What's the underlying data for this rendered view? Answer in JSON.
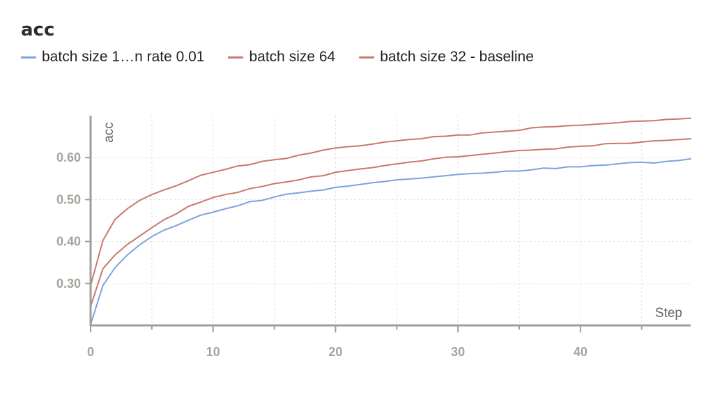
{
  "chart_data": {
    "type": "line",
    "title": "acc",
    "xlabel": "Step",
    "ylabel": "acc",
    "xlim": [
      0,
      49
    ],
    "ylim": [
      0.2,
      0.7
    ],
    "x_ticks": [
      0,
      10,
      20,
      30,
      40
    ],
    "x_tick_labels": [
      "0",
      "10",
      "20",
      "30",
      "40"
    ],
    "y_ticks": [
      0.3,
      0.4,
      0.5,
      0.6
    ],
    "y_tick_labels": [
      "0.30",
      "0.40",
      "0.50",
      "0.60"
    ],
    "grid": true,
    "legend_position": "top-left",
    "x": [
      0,
      1,
      2,
      3,
      4,
      5,
      6,
      7,
      8,
      9,
      10,
      11,
      12,
      13,
      14,
      15,
      16,
      17,
      18,
      19,
      20,
      21,
      22,
      23,
      24,
      25,
      26,
      27,
      28,
      29,
      30,
      31,
      32,
      33,
      34,
      35,
      36,
      37,
      38,
      39,
      40,
      41,
      42,
      43,
      44,
      45,
      46,
      47,
      48,
      49
    ],
    "series": [
      {
        "name": "batch size 1…n rate 0.01",
        "color": "#7ba4dc",
        "values": [
          0.202,
          0.295,
          0.338,
          0.368,
          0.392,
          0.412,
          0.427,
          0.438,
          0.451,
          0.463,
          0.47,
          0.478,
          0.485,
          0.495,
          0.498,
          0.506,
          0.513,
          0.516,
          0.52,
          0.523,
          0.529,
          0.532,
          0.536,
          0.54,
          0.543,
          0.547,
          0.549,
          0.551,
          0.554,
          0.557,
          0.56,
          0.562,
          0.563,
          0.565,
          0.568,
          0.568,
          0.571,
          0.575,
          0.574,
          0.578,
          0.578,
          0.581,
          0.582,
          0.585,
          0.588,
          0.589,
          0.587,
          0.591,
          0.593,
          0.597
        ]
      },
      {
        "name": "batch size 64",
        "color": "#c9786c",
        "values": [
          0.245,
          0.335,
          0.368,
          0.393,
          0.413,
          0.433,
          0.452,
          0.466,
          0.484,
          0.494,
          0.505,
          0.512,
          0.517,
          0.526,
          0.531,
          0.538,
          0.542,
          0.547,
          0.554,
          0.557,
          0.565,
          0.569,
          0.573,
          0.576,
          0.581,
          0.585,
          0.589,
          0.592,
          0.597,
          0.601,
          0.602,
          0.605,
          0.608,
          0.611,
          0.614,
          0.617,
          0.618,
          0.62,
          0.621,
          0.625,
          0.627,
          0.628,
          0.633,
          0.634,
          0.634,
          0.637,
          0.64,
          0.641,
          0.643,
          0.645
        ]
      },
      {
        "name": "batch size 32 - baseline",
        "color": "#c9786c",
        "values": [
          0.295,
          0.402,
          0.453,
          0.478,
          0.498,
          0.512,
          0.523,
          0.533,
          0.545,
          0.558,
          0.565,
          0.572,
          0.58,
          0.583,
          0.591,
          0.595,
          0.598,
          0.606,
          0.611,
          0.618,
          0.623,
          0.626,
          0.628,
          0.632,
          0.637,
          0.64,
          0.643,
          0.645,
          0.65,
          0.651,
          0.654,
          0.654,
          0.659,
          0.661,
          0.663,
          0.665,
          0.671,
          0.673,
          0.674,
          0.676,
          0.677,
          0.679,
          0.681,
          0.683,
          0.686,
          0.687,
          0.688,
          0.691,
          0.692,
          0.694
        ]
      }
    ]
  }
}
